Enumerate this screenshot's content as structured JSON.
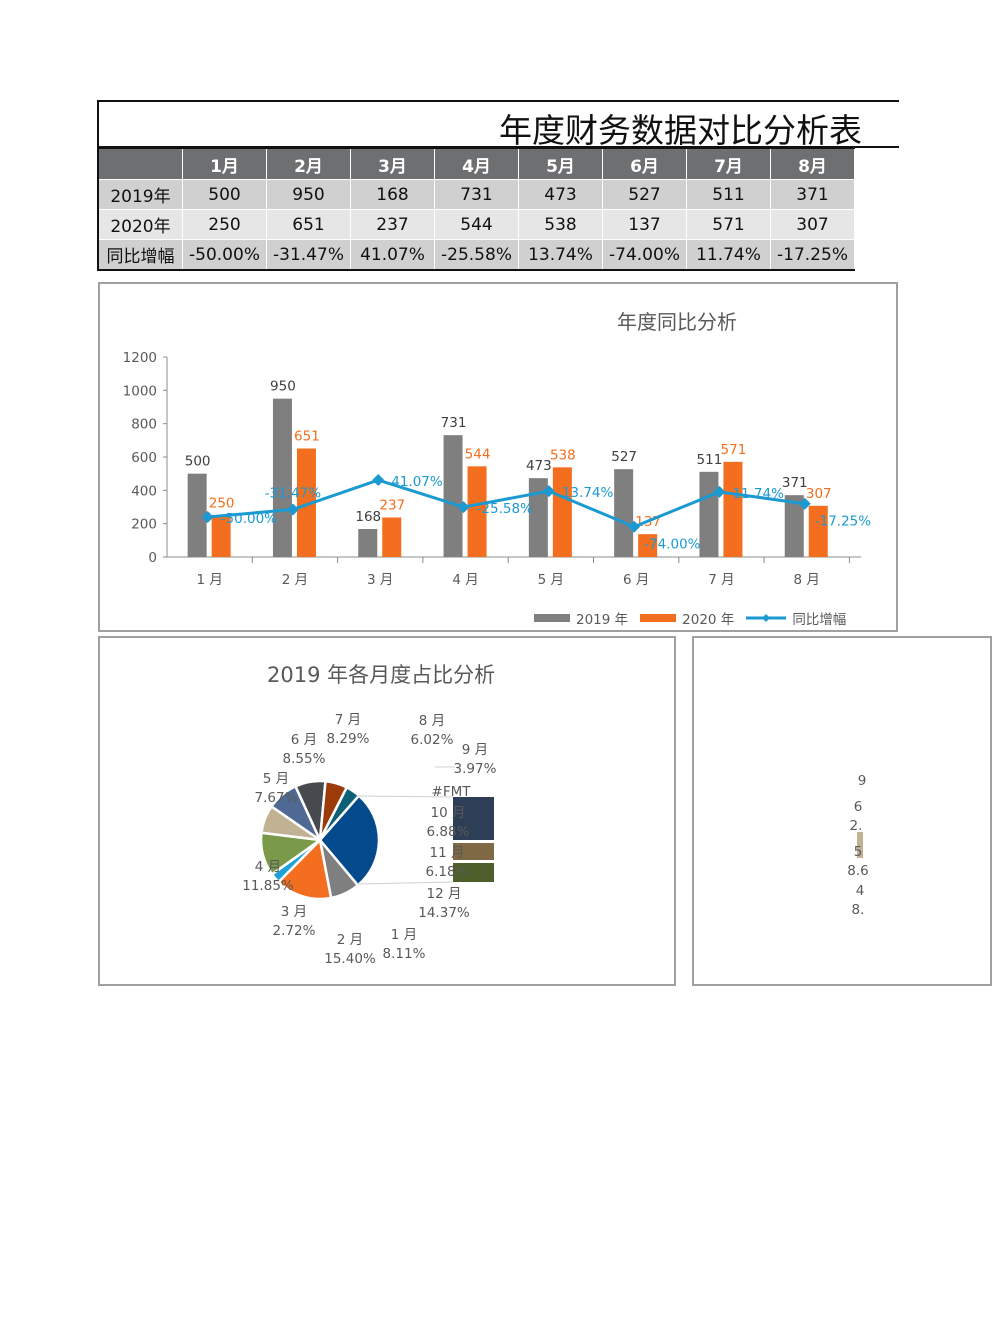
{
  "title": "年度财务数据对比分析表",
  "table": {
    "headers": [
      "",
      "1月",
      "2月",
      "3月",
      "4月",
      "5月",
      "6月",
      "7月",
      "8月"
    ],
    "rows": [
      {
        "label": "2019年",
        "values": [
          "500",
          "950",
          "168",
          "731",
          "473",
          "527",
          "511",
          "371"
        ]
      },
      {
        "label": "2020年",
        "values": [
          "250",
          "651",
          "237",
          "544",
          "538",
          "137",
          "571",
          "307"
        ]
      },
      {
        "label": "同比增幅",
        "values": [
          "-50.00%",
          "-31.47%",
          "41.07%",
          "-25.58%",
          "13.74%",
          "-74.00%",
          "11.74%",
          "-17.25%"
        ]
      }
    ]
  },
  "chart_data": [
    {
      "type": "bar",
      "title": "年度同比分析",
      "categories": [
        "1 月",
        "2 月",
        "3 月",
        "4 月",
        "5 月",
        "6 月",
        "7 月",
        "8 月"
      ],
      "ylim": [
        0,
        1200
      ],
      "yticks": [
        "0",
        "200",
        "400",
        "600",
        "800",
        "1000",
        "1200"
      ],
      "legend_position": "bottom-right",
      "grid": false,
      "series": [
        {
          "name": "2019 年",
          "kind": "bar",
          "color": "#7f7f80",
          "values": [
            500,
            950,
            168,
            731,
            473,
            527,
            511,
            371
          ],
          "labels": [
            "500",
            "950",
            "168",
            "731",
            "473",
            "527",
            "511",
            "371"
          ]
        },
        {
          "name": "2020 年",
          "kind": "bar",
          "color": "#f46e1f",
          "values": [
            250,
            651,
            237,
            544,
            538,
            137,
            571,
            307
          ],
          "labels": [
            "250",
            "651",
            "237",
            "544",
            "538",
            "137",
            "571",
            "307"
          ]
        },
        {
          "name": "同比增幅",
          "kind": "line",
          "axis": "secondary",
          "color": "#1b9ad2",
          "values": [
            -50.0,
            -31.47,
            41.07,
            -25.58,
            13.74,
            -74.0,
            11.74,
            -17.25
          ],
          "labels": [
            "-50.00%",
            "-31.47%",
            "41.07%",
            "-25.58%",
            "13.74%",
            "-74.00%",
            "11.74%",
            "-17.25%"
          ]
        }
      ]
    },
    {
      "type": "pie",
      "title": "2019 年各月度占比分析",
      "subtype": "bar-of-pie",
      "slices": [
        {
          "label": "1 月",
          "pct": "8.11%",
          "value": 8.11,
          "color": "#7f7f80"
        },
        {
          "label": "2 月",
          "pct": "15.40%",
          "value": 15.4,
          "color": "#f46e1f"
        },
        {
          "label": "3 月",
          "pct": "2.72%",
          "value": 2.72,
          "color": "#1ea0d8"
        },
        {
          "label": "4 月",
          "pct": "11.85%",
          "value": 11.85,
          "color": "#7a9a4a"
        },
        {
          "label": "5 月",
          "pct": "7.67%",
          "value": 7.67,
          "color": "#c2b294"
        },
        {
          "label": "6 月",
          "pct": "8.55%",
          "value": 8.55,
          "color": "#4e6a94"
        },
        {
          "label": "7 月",
          "pct": "8.29%",
          "value": 8.29,
          "color": "#46494e"
        },
        {
          "label": "8 月",
          "pct": "6.02%",
          "value": 6.02,
          "color": "#9c3a0a"
        },
        {
          "label": "9 月",
          "pct": "3.97%",
          "value": 3.97,
          "color": "#0d6076"
        }
      ],
      "other": {
        "label": "#FMT",
        "color": "#034a8c"
      },
      "bar_items": [
        {
          "label": "10 月",
          "pct": "6.88%",
          "value": 6.88,
          "color": "#2d3e57"
        },
        {
          "label": "11 月",
          "pct": "6.18%",
          "value": 6.18,
          "color": "#7f6a45"
        },
        {
          "label": "12 月",
          "pct": "14.37%",
          "value": 14.37,
          "color": "#4e5f2b"
        }
      ]
    }
  ],
  "second_pie_fragments": [
    "9",
    "6",
    "2.",
    "5",
    "8.6",
    "4",
    "8."
  ]
}
